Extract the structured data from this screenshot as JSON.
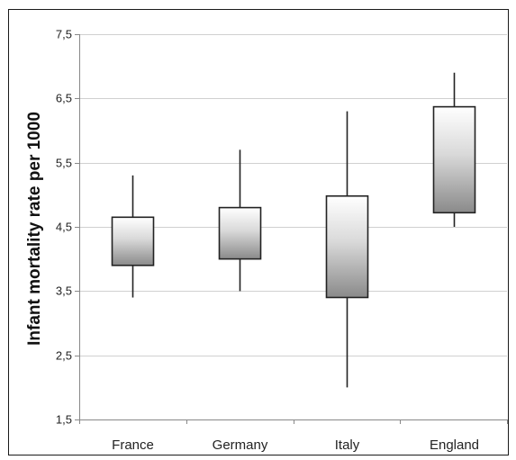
{
  "chart_data": {
    "type": "box",
    "ylabel": "Infant mortality rate per 1000",
    "xlabel": "",
    "ylim": [
      1.5,
      7.5
    ],
    "yticks": [
      1.5,
      2.5,
      3.5,
      4.5,
      5.5,
      6.5,
      7.5
    ],
    "ytick_labels": [
      "1,5",
      "2,5",
      "3,5",
      "4,5",
      "5,5",
      "6,5",
      "7,5"
    ],
    "grid": true,
    "categories": [
      "France",
      "Germany",
      "Italy",
      "England"
    ],
    "boxes": [
      {
        "category": "France",
        "min": 3.4,
        "q1": 3.9,
        "q3": 4.65,
        "max": 5.3
      },
      {
        "category": "Germany",
        "min": 3.5,
        "q1": 4.0,
        "q3": 4.8,
        "max": 5.7
      },
      {
        "category": "Italy",
        "min": 2.0,
        "q1": 3.4,
        "q3": 4.98,
        "max": 6.3
      },
      {
        "category": "England",
        "min": 4.5,
        "q1": 4.72,
        "q3": 6.37,
        "max": 6.9
      }
    ],
    "colors": {
      "box_top": "#ffffff",
      "box_bottom": "#8a8a8a",
      "grid": "#d0d0d0",
      "line": "#222222"
    }
  }
}
